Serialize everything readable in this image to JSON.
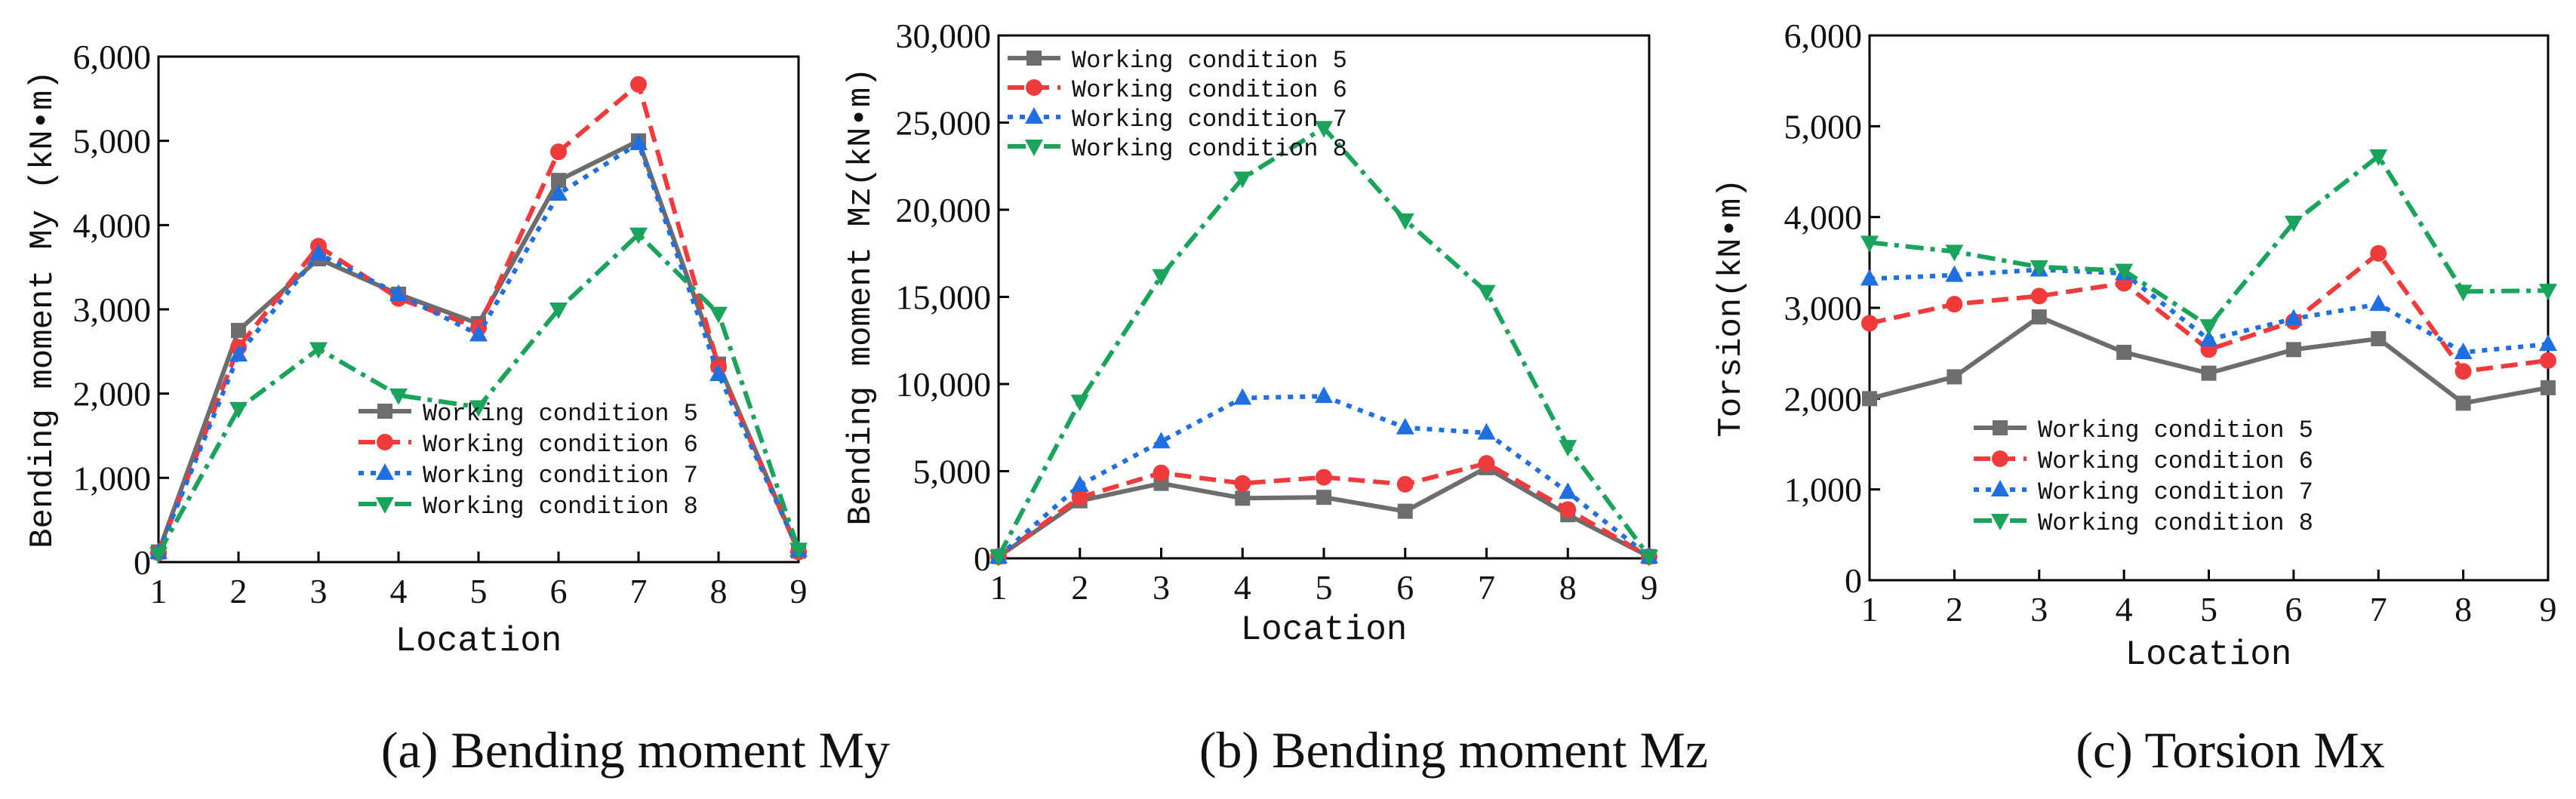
{
  "captions": {
    "a": "(a) Bending moment My",
    "b": "(b) Bending moment Mz",
    "c": "(c) Torsion Mx"
  },
  "series_styles": [
    {
      "name": "Working condition 5",
      "color": "#6d6d6d",
      "marker": "square",
      "dash": "solid"
    },
    {
      "name": "Working condition 6",
      "color": "#ef3b3b",
      "marker": "circle",
      "dash": "dash"
    },
    {
      "name": "Working condition 7",
      "color": "#1f6fe0",
      "marker": "triangle-up",
      "dash": "dot"
    },
    {
      "name": "Working condition 8",
      "color": "#1aa35b",
      "marker": "triangle-down",
      "dash": "dashdot"
    }
  ],
  "chart_data": [
    {
      "id": "a",
      "type": "line",
      "title": "",
      "xlabel": "Location",
      "ylabel": "Bending moment My (kN•m)",
      "x": [
        1,
        2,
        3,
        4,
        5,
        6,
        7,
        8,
        9
      ],
      "xlim": [
        1,
        9
      ],
      "ylim": [
        0,
        6000
      ],
      "yticks": [
        0,
        1000,
        2000,
        3000,
        4000,
        5000,
        6000
      ],
      "ytick_labels": [
        "0",
        "1,000",
        "2,000",
        "3,000",
        "4,000",
        "5,000",
        "6,000"
      ],
      "xtick_labels": [
        "1",
        "2",
        "3",
        "4",
        "5",
        "6",
        "7",
        "8",
        "9"
      ],
      "legend_position": "lower-right",
      "series": [
        {
          "name": "Working condition 5",
          "values": [
            120,
            2750,
            3600,
            3180,
            2830,
            4530,
            5000,
            2350,
            130
          ]
        },
        {
          "name": "Working condition 6",
          "values": [
            110,
            2550,
            3750,
            3130,
            2780,
            4870,
            5670,
            2320,
            120
          ]
        },
        {
          "name": "Working condition 7",
          "values": [
            120,
            2460,
            3660,
            3180,
            2700,
            4370,
            4970,
            2230,
            140
          ]
        },
        {
          "name": "Working condition 8",
          "values": [
            100,
            1820,
            2530,
            1980,
            1840,
            3000,
            3890,
            2950,
            150
          ]
        }
      ]
    },
    {
      "id": "b",
      "type": "line",
      "title": "",
      "xlabel": "Location",
      "ylabel": "Bending moment Mz(kN•m)",
      "x": [
        1,
        2,
        3,
        4,
        5,
        6,
        7,
        8,
        9
      ],
      "xlim": [
        1,
        9
      ],
      "ylim": [
        0,
        30000
      ],
      "yticks": [
        0,
        5000,
        10000,
        15000,
        20000,
        25000,
        30000
      ],
      "ytick_labels": [
        "0",
        "5,000",
        "10,000",
        "15,000",
        "20,000",
        "25,000",
        "30,000"
      ],
      "xtick_labels": [
        "1",
        "2",
        "3",
        "4",
        "5",
        "6",
        "7",
        "8",
        "9"
      ],
      "legend_position": "top-left",
      "series": [
        {
          "name": "Working condition 5",
          "values": [
            100,
            3300,
            4300,
            3450,
            3500,
            2700,
            5200,
            2500,
            100
          ]
        },
        {
          "name": "Working condition 6",
          "values": [
            100,
            3500,
            4900,
            4300,
            4650,
            4250,
            5450,
            2800,
            100
          ]
        },
        {
          "name": "Working condition 7",
          "values": [
            100,
            4200,
            6700,
            9200,
            9300,
            7500,
            7200,
            3800,
            100
          ]
        },
        {
          "name": "Working condition 8",
          "values": [
            100,
            9000,
            16200,
            21800,
            24700,
            19400,
            15300,
            6400,
            100
          ]
        }
      ]
    },
    {
      "id": "c",
      "type": "line",
      "title": "",
      "xlabel": "Location",
      "ylabel": "Torsion(kN•m)",
      "x": [
        1,
        2,
        3,
        4,
        5,
        6,
        7,
        8,
        9
      ],
      "xlim": [
        1,
        9
      ],
      "ylim": [
        0,
        6000
      ],
      "yticks": [
        0,
        1000,
        2000,
        3000,
        4000,
        5000,
        6000
      ],
      "ytick_labels": [
        "0",
        "1,000",
        "2,000",
        "3,000",
        "4,000",
        "5,000",
        "6,000"
      ],
      "xtick_labels": [
        "1",
        "2",
        "3",
        "4",
        "5",
        "6",
        "7",
        "8",
        "9"
      ],
      "legend_position": "lower-left",
      "series": [
        {
          "name": "Working condition 5",
          "values": [
            2000,
            2240,
            2900,
            2510,
            2280,
            2540,
            2660,
            1950,
            2120
          ]
        },
        {
          "name": "Working condition 6",
          "values": [
            2830,
            3040,
            3130,
            3270,
            2540,
            2850,
            3600,
            2300,
            2420
          ]
        },
        {
          "name": "Working condition 7",
          "values": [
            3320,
            3360,
            3420,
            3380,
            2650,
            2880,
            3040,
            2510,
            2600
          ]
        },
        {
          "name": "Working condition 8",
          "values": [
            3720,
            3620,
            3450,
            3410,
            2800,
            3940,
            4670,
            3180,
            3190
          ]
        }
      ]
    }
  ]
}
